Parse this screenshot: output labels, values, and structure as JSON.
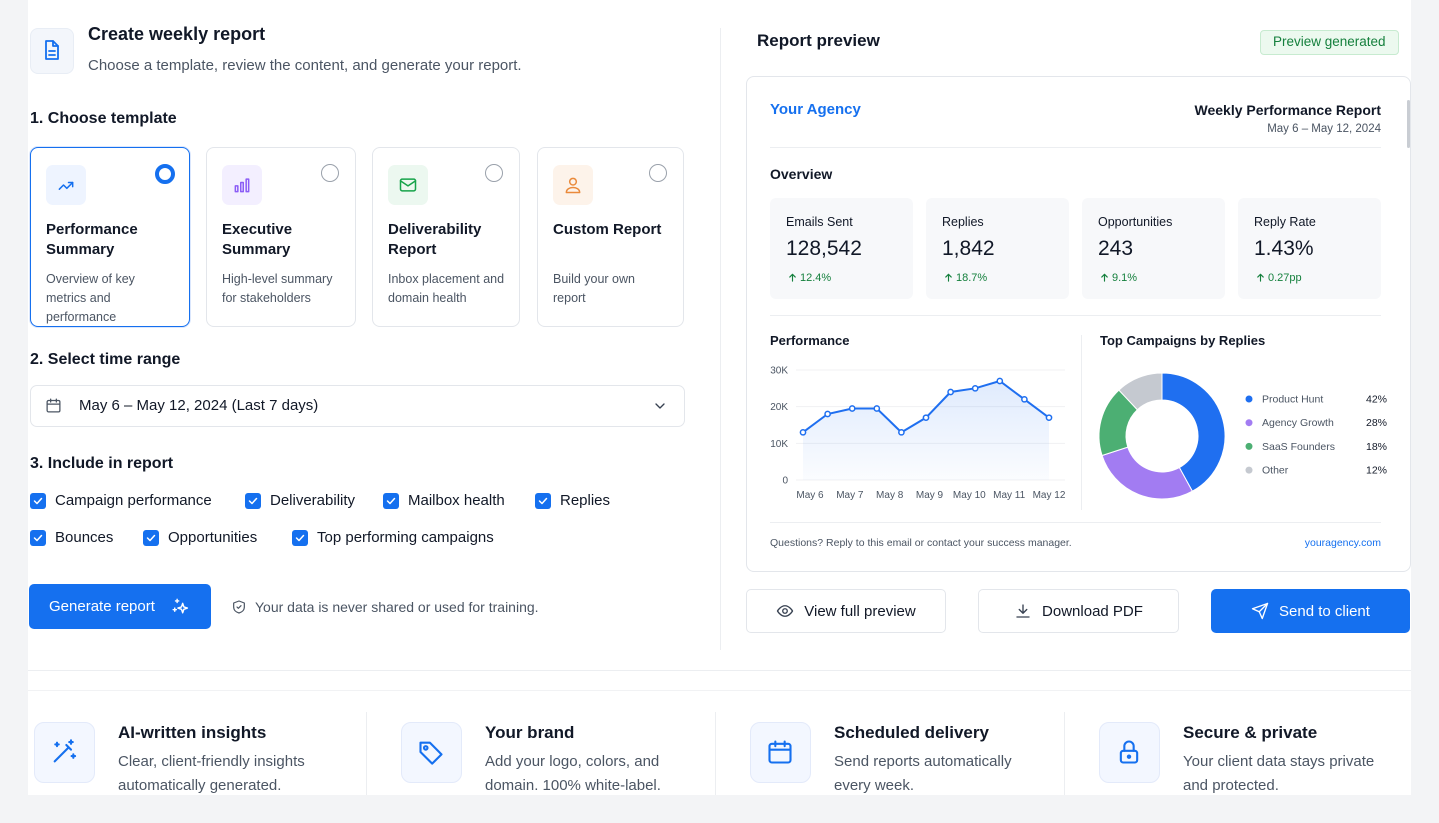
{
  "header": {
    "title": "Create weekly report",
    "subtitle": "Choose a template, review the content, and generate your report."
  },
  "template_section": {
    "heading": "1. Choose template",
    "templates": [
      {
        "title": "Performance Summary",
        "description": "Overview of key metrics and performance",
        "selected": true
      },
      {
        "title": "Executive Summary",
        "description": "High-level summary for stakeholders",
        "selected": false
      },
      {
        "title": "Deliverability Report",
        "description": "Inbox placement and domain health",
        "selected": false
      },
      {
        "title": "Custom Report",
        "description": "Build your own report",
        "selected": false
      }
    ]
  },
  "time_range": {
    "heading": "2. Select time range",
    "value": "May 6 – May 12, 2024 (Last 7 days)"
  },
  "include": {
    "heading": "3. Include in report",
    "options": [
      "Campaign performance",
      "Deliverability",
      "Mailbox health",
      "Replies",
      "Bounces",
      "Opportunities",
      "Top performing campaigns"
    ]
  },
  "generate": {
    "button": "Generate report",
    "note": "Your data is never shared or used for training."
  },
  "preview": {
    "heading": "Report preview",
    "badge": "Preview generated",
    "agency": "Your Agency",
    "report_title": "Weekly Performance Report",
    "date_range": "May 6 – May 12, 2024",
    "overview_heading": "Overview",
    "stats": [
      {
        "label": "Emails Sent",
        "value": "128,542",
        "change": "12.4%"
      },
      {
        "label": "Replies",
        "value": "1,842",
        "change": "18.7%"
      },
      {
        "label": "Opportunities",
        "value": "243",
        "change": "9.1%"
      },
      {
        "label": "Reply Rate",
        "value": "1.43%",
        "change": "0.27pp"
      }
    ],
    "performance_chart": {
      "type": "line",
      "title": "Performance",
      "x_labels": [
        "May 6",
        "May 7",
        "May 8",
        "May 9",
        "May 10",
        "May 11",
        "May 12"
      ],
      "values": [
        13000,
        18000,
        19500,
        19500,
        13000,
        17000,
        24000,
        25000,
        27000,
        22000,
        17000
      ],
      "ylim": [
        0,
        30000
      ],
      "yticks": [
        0,
        {
          "value": 10000,
          "label": "10K"
        },
        {
          "value": 20000,
          "label": "20K"
        },
        {
          "value": 30000,
          "label": "30K"
        }
      ],
      "color": "#1f6ff0"
    },
    "campaigns_chart": {
      "type": "donut",
      "title": "Top Campaigns by Replies",
      "categories": [
        "Product Hunt",
        "Agency Growth",
        "SaaS Founders",
        "Other"
      ],
      "values": [
        42,
        28,
        18,
        12
      ],
      "value_labels": [
        "42%",
        "28%",
        "18%",
        "12%"
      ],
      "colors": [
        "#1f6ff0",
        "#a27cf2",
        "#4caf73",
        "#c5c9d0"
      ]
    },
    "footer_note": "Questions? Reply to this email or contact your success manager.",
    "footer_link": "youragency.com"
  },
  "actions": [
    "View full preview",
    "Download PDF",
    "Send to client"
  ],
  "features": [
    {
      "title": "AI-written insights",
      "description": "Clear, client-friendly insights automatically generated."
    },
    {
      "title": "Your brand",
      "description": "Add your logo, colors, and domain. 100% white-label."
    },
    {
      "title": "Scheduled delivery",
      "description": "Send reports automatically every week."
    },
    {
      "title": "Secure & private",
      "description": "Your client data stays private and protected."
    }
  ]
}
